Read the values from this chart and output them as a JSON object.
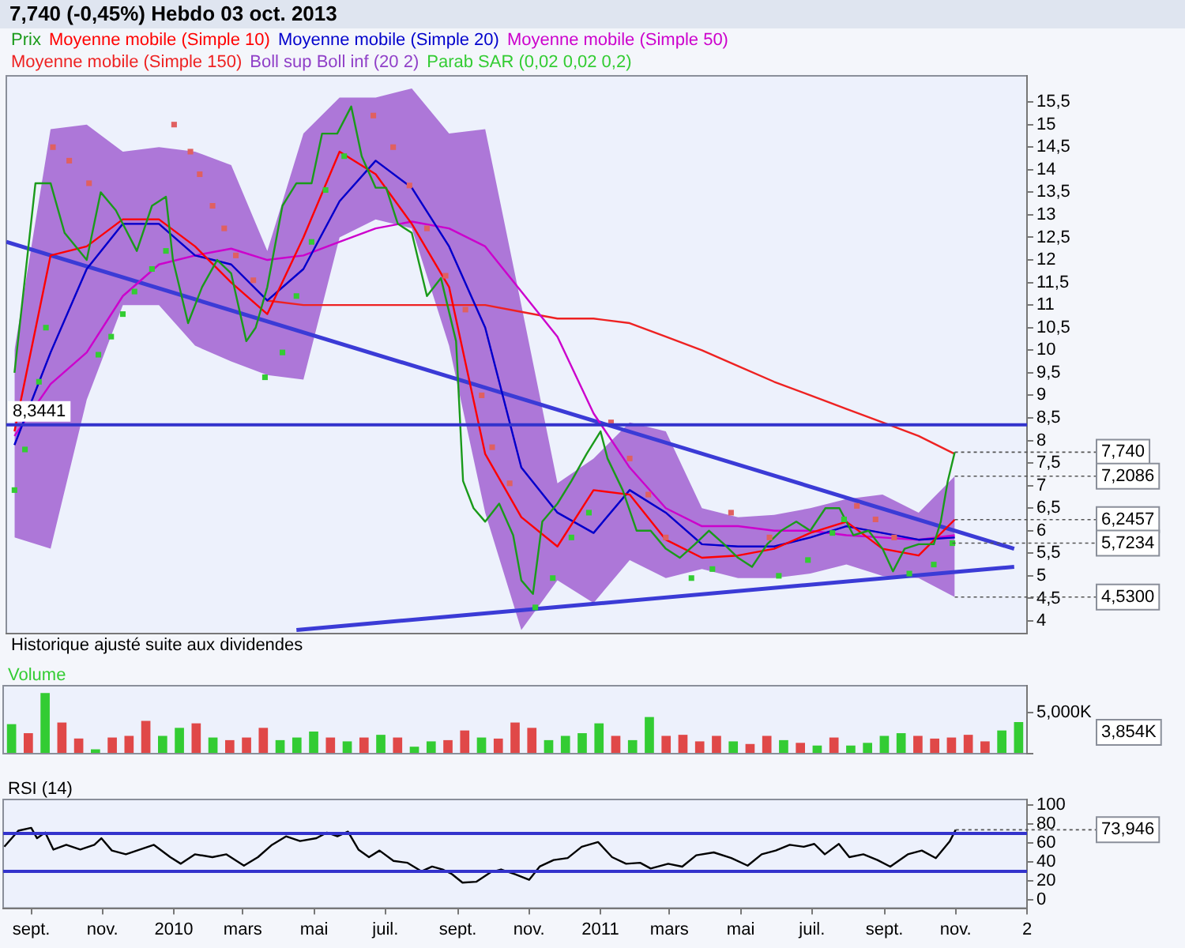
{
  "chart_data": [
    {
      "type": "line",
      "title": "7,740 (-0,45%)   Hebdo  03 oct. 2013",
      "legend": "top left",
      "tick_labels": "y",
      "xlim": [
        "2009-08-08",
        "2012-01-01"
      ],
      "ylim": [
        3.72,
        16.08
      ],
      "yticks": [
        4,
        {
          "value": 4.5,
          "label": "4,5"
        },
        5,
        {
          "value": 5.5,
          "label": "5,5"
        },
        6,
        {
          "value": 6.5,
          "label": "6,5"
        },
        7,
        {
          "value": 7.5,
          "label": "7,5"
        },
        8,
        {
          "value": 8.5,
          "label": "8,5"
        },
        9,
        {
          "value": 9.5,
          "label": "9,5"
        },
        10,
        {
          "value": 10.5,
          "label": "10,5"
        },
        11,
        {
          "value": 11.5,
          "label": "11,5"
        },
        12,
        {
          "value": 12.5,
          "label": "12,5"
        },
        13,
        {
          "value": 13.5,
          "label": "13,5"
        },
        14,
        {
          "value": 14.5,
          "label": "14,5"
        },
        15,
        {
          "value": 15.5,
          "label": "15,5"
        }
      ],
      "x": [
        "2009-08-15",
        "2009-09-15",
        "2009-10-16",
        "2009-11-16",
        "2009-12-17",
        "2010-01-17",
        "2010-02-17",
        "2010-03-20",
        "2010-04-20",
        "2010-05-21",
        "2010-06-21",
        "2010-07-22",
        "2010-08-23",
        "2010-09-23",
        "2010-10-24",
        "2010-11-24",
        "2010-12-25",
        "2011-01-25",
        "2011-02-25",
        "2011-03-28",
        "2011-04-28",
        "2011-05-29",
        "2011-06-29",
        "2011-07-30",
        "2011-08-30",
        "2011-09-30",
        "2011-10-31"
      ],
      "ref_lines": [
        {
          "axis": "y",
          "value": 8.3441,
          "label": "8,3441",
          "color": "#3333cc"
        }
      ],
      "annotations": [
        "Historique ajusté suite aux dividendes",
        {
          "text": "7,740",
          "x": "2011-10-31",
          "y": 7.74
        },
        {
          "text": "7,2086",
          "x": "2011-10-31",
          "y": 7.2086
        },
        {
          "text": "6,2457",
          "x": "2011-10-31",
          "y": 6.2457
        },
        {
          "text": "5,7234",
          "x": "2011-10-29",
          "y": 5.7234
        },
        {
          "text": "4,5300",
          "x": "2011-10-31",
          "y": 4.53
        }
      ],
      "series": [
        {
          "name": "Prix",
          "type": "line",
          "color": "#1a9a1a",
          "x": [
            "2009-08-15",
            "2009-09-02",
            "2009-09-15",
            "2009-09-27",
            "2009-10-16",
            "2009-10-28",
            "2009-11-10",
            "2009-11-28",
            "2009-12-11",
            "2009-12-23",
            "2009-12-29",
            "2010-01-11",
            "2010-01-23",
            "2010-02-05",
            "2010-02-17",
            "2010-03-02",
            "2010-03-10",
            "2010-03-20",
            "2010-04-02",
            "2010-04-14",
            "2010-04-27",
            "2010-05-06",
            "2010-05-19",
            "2010-05-31",
            "2010-06-09",
            "2010-06-21",
            "2010-06-30",
            "2010-07-10",
            "2010-07-22",
            "2010-08-04",
            "2010-08-16",
            "2010-08-29",
            "2010-09-04",
            "2010-09-13",
            "2010-09-23",
            "2010-10-05",
            "2010-10-17",
            "2010-10-24",
            "2010-11-03",
            "2010-11-11",
            "2010-11-24",
            "2010-12-06",
            "2010-12-19",
            "2010-12-31",
            "2011-01-06",
            "2011-01-19",
            "2011-01-31",
            "2011-02-12",
            "2011-02-25",
            "2011-03-09",
            "2011-03-22",
            "2011-04-03",
            "2011-04-16",
            "2011-04-28",
            "2011-05-10",
            "2011-05-23",
            "2011-06-04",
            "2011-06-17",
            "2011-06-29",
            "2011-07-12",
            "2011-07-24",
            "2011-08-05",
            "2011-08-18",
            "2011-08-30",
            "2011-09-08",
            "2011-09-18",
            "2011-09-30",
            "2011-10-13",
            "2011-10-19",
            "2011-10-25",
            "2011-10-31"
          ],
          "values": [
            9.5,
            13.7,
            13.7,
            12.6,
            12.0,
            13.5,
            13.1,
            12.2,
            13.2,
            13.4,
            12.0,
            10.6,
            11.4,
            12.0,
            11.7,
            10.2,
            10.5,
            11.4,
            13.2,
            13.7,
            13.7,
            14.8,
            14.8,
            15.4,
            14.3,
            13.6,
            13.6,
            12.8,
            12.6,
            11.2,
            11.6,
            10.2,
            7.1,
            6.5,
            6.2,
            6.6,
            5.9,
            4.9,
            4.6,
            6.2,
            6.6,
            7.1,
            7.7,
            8.2,
            7.6,
            6.9,
            6.0,
            6.0,
            5.6,
            5.4,
            5.7,
            6.0,
            5.7,
            5.4,
            5.2,
            5.7,
            6.0,
            6.2,
            6.0,
            6.5,
            6.5,
            5.9,
            6.0,
            5.6,
            5.1,
            5.6,
            5.7,
            5.7,
            6.2,
            7.1,
            7.74
          ]
        },
        {
          "name": "Moyenne mobile (Simple 10)",
          "type": "line",
          "color": "#ff0000",
          "values": [
            8.2,
            12.1,
            12.3,
            12.9,
            12.9,
            12.3,
            11.5,
            10.8,
            12.5,
            14.4,
            13.9,
            12.8,
            11.4,
            7.7,
            6.3,
            5.65,
            6.9,
            6.8,
            5.8,
            5.4,
            5.45,
            5.6,
            5.95,
            6.2,
            5.6,
            5.45,
            6.2457
          ]
        },
        {
          "name": "Moyenne mobile (Simple 20)",
          "type": "line",
          "color": "#0000cc",
          "values": [
            7.9,
            9.95,
            11.8,
            12.8,
            12.8,
            12.1,
            11.9,
            11.1,
            11.8,
            13.3,
            14.2,
            13.6,
            12.3,
            10.5,
            7.4,
            6.4,
            5.95,
            6.9,
            6.4,
            5.7,
            5.65,
            5.65,
            5.85,
            6.1,
            5.95,
            5.8,
            5.85
          ]
        },
        {
          "name": "Moyenne mobile (Simple 50)",
          "type": "line",
          "color": "#cc00cc",
          "values": [
            8.1,
            9.25,
            9.95,
            11.2,
            11.9,
            12.1,
            12.25,
            12.0,
            12.1,
            12.4,
            12.7,
            12.85,
            12.7,
            12.3,
            11.3,
            10.3,
            8.6,
            7.4,
            6.5,
            6.1,
            6.1,
            6.0,
            6.0,
            5.9,
            5.85,
            5.8,
            5.9
          ]
        },
        {
          "name": "Moyenne mobile (Simple 150)",
          "type": "line",
          "color": "#ee2222",
          "values": [
            null,
            null,
            null,
            null,
            null,
            null,
            null,
            11.1,
            11.0,
            11.0,
            11.0,
            11.0,
            11.0,
            11.0,
            10.85,
            10.7,
            10.7,
            10.6,
            10.3,
            10.0,
            9.65,
            9.3,
            9.0,
            8.7,
            8.4,
            8.1,
            7.7
          ]
        },
        {
          "name": "Boll sup Boll inf (20 2)",
          "type": "line",
          "color": "#9040c8",
          "values": [
            7.9,
            9.95,
            11.8,
            12.8,
            12.8,
            12.1,
            11.9,
            11.1,
            11.8,
            13.3,
            14.2,
            13.6,
            12.3,
            10.5,
            7.4,
            6.4,
            5.95,
            6.9,
            6.4,
            5.7,
            5.65,
            5.65,
            5.85,
            6.1,
            5.95,
            5.8,
            5.85
          ],
          "upper": [
            10.0,
            14.9,
            15.0,
            14.4,
            14.5,
            14.4,
            14.1,
            12.2,
            14.8,
            15.6,
            15.6,
            15.8,
            14.8,
            14.9,
            11.0,
            7.05,
            7.6,
            8.4,
            8.2,
            6.5,
            6.3,
            6.35,
            6.5,
            6.7,
            6.8,
            6.4,
            7.2086
          ],
          "lower": [
            5.85,
            5.6,
            8.9,
            11.0,
            11.0,
            10.1,
            9.75,
            9.45,
            9.35,
            12.5,
            12.9,
            12.7,
            10.1,
            6.4,
            3.8,
            4.9,
            4.4,
            5.35,
            4.95,
            5.15,
            4.95,
            4.95,
            5.05,
            5.25,
            5.0,
            4.95,
            4.53
          ]
        },
        {
          "name": "Parab SAR (0,02 0,02 0,2)",
          "type": "scatter",
          "marker": "square",
          "color": "#33cc33",
          "x": [
            "2009-08-15",
            "2009-08-24",
            "2009-09-05",
            "2009-09-11",
            "2009-09-17",
            "2009-10-01",
            "2009-10-18",
            "2009-10-26",
            "2009-11-06",
            "2009-11-16",
            "2009-11-26",
            "2009-12-11",
            "2009-12-23",
            "2009-12-30",
            "2010-01-13",
            "2010-01-21",
            "2010-02-01",
            "2010-02-11",
            "2010-02-21",
            "2010-03-08",
            "2010-03-18",
            "2010-04-02",
            "2010-04-14",
            "2010-04-27",
            "2010-05-09",
            "2010-05-25",
            "2010-06-19",
            "2010-07-06",
            "2010-07-20",
            "2010-08-04",
            "2010-08-20",
            "2010-09-06",
            "2010-09-20",
            "2010-09-29",
            "2010-10-14",
            "2010-11-05",
            "2010-11-20",
            "2010-12-06",
            "2010-12-21",
            "2011-01-09",
            "2011-01-25",
            "2011-02-10",
            "2011-02-25",
            "2011-03-19",
            "2011-04-06",
            "2011-04-22",
            "2011-05-25",
            "2011-06-02",
            "2011-06-27",
            "2011-07-18",
            "2011-07-28",
            "2011-08-08",
            "2011-08-24",
            "2011-09-09",
            "2011-09-22",
            "2011-10-13",
            "2011-10-29"
          ],
          "values": [
            6.9,
            7.8,
            9.3,
            10.5,
            14.5,
            14.2,
            13.7,
            9.9,
            10.3,
            10.8,
            11.3,
            11.8,
            12.2,
            15.0,
            14.4,
            13.9,
            13.2,
            12.7,
            12.1,
            11.55,
            9.4,
            9.95,
            11.2,
            12.4,
            13.55,
            14.3,
            15.2,
            14.5,
            13.65,
            12.7,
            11.65,
            10.9,
            9.0,
            7.85,
            7.05,
            4.3,
            4.95,
            5.85,
            6.4,
            8.4,
            7.6,
            6.8,
            5.85,
            4.95,
            5.15,
            6.4,
            5.85,
            5.0,
            5.35,
            5.95,
            6.25,
            6.55,
            6.25,
            5.85,
            5.05,
            5.25,
            5.7234
          ],
          "colors": [
            "#33cc33",
            "#33cc33",
            "#33cc33",
            "#33cc33",
            "#e06060",
            "#e06060",
            "#e06060",
            "#33cc33",
            "#33cc33",
            "#33cc33",
            "#33cc33",
            "#33cc33",
            "#33cc33",
            "#e06060",
            "#e06060",
            "#e06060",
            "#e06060",
            "#e06060",
            "#e06060",
            "#e06060",
            "#33cc33",
            "#33cc33",
            "#33cc33",
            "#33cc33",
            "#33cc33",
            "#33cc33",
            "#e06060",
            "#e06060",
            "#e06060",
            "#e06060",
            "#e06060",
            "#e06060",
            "#e06060",
            "#e06060",
            "#e06060",
            "#33cc33",
            "#33cc33",
            "#33cc33",
            "#33cc33",
            "#e06060",
            "#e06060",
            "#e06060",
            "#e06060",
            "#33cc33",
            "#33cc33",
            "#e06060",
            "#e06060",
            "#33cc33",
            "#33cc33",
            "#33cc33",
            "#33cc33",
            "#e06060",
            "#e06060",
            "#e06060",
            "#33cc33",
            "#33cc33",
            "#33cc33"
          ]
        },
        {
          "type": "line",
          "color": "#3b3bd6",
          "x": [
            "2009-08-08",
            "2011-12-21"
          ],
          "values": [
            12.4,
            5.6
          ]
        },
        {
          "type": "line",
          "color": "#3b3bd6",
          "x": [
            "2010-04-14",
            "2011-12-21"
          ],
          "values": [
            3.8,
            5.2
          ]
        }
      ]
    },
    {
      "type": "bar",
      "legend": "top left",
      "tick_labels": "y",
      "ylim": [
        0,
        8290
      ],
      "yticks": [
        {
          "value": 0,
          "label": null
        },
        {
          "value": 5000,
          "label": "5,000K"
        }
      ],
      "categories": [
        null,
        null,
        null,
        null,
        null,
        null,
        null,
        null,
        null,
        null,
        null,
        null,
        null,
        null,
        null,
        null,
        null,
        null,
        null,
        null,
        null,
        null,
        null,
        null,
        null,
        null,
        null,
        null,
        null,
        null,
        null,
        null,
        null,
        null,
        null,
        null,
        null,
        null,
        null,
        null,
        null,
        null,
        null,
        null,
        null,
        null,
        null,
        null,
        null,
        null,
        null,
        null,
        null,
        null,
        null,
        null,
        null,
        null,
        null,
        null,
        null
      ],
      "annotations": [
        "3,854K"
      ],
      "series": [
        {
          "name": "Volume",
          "color": "#33cc33",
          "values": [
            3600,
            2500,
            7400,
            3800,
            1850,
            530,
            1970,
            2170,
            4000,
            2170,
            3150,
            3700,
            1970,
            1650,
            1970,
            3150,
            1650,
            1970,
            2700,
            1970,
            1500,
            1970,
            2300,
            1970,
            850,
            1500,
            1650,
            2830,
            1970,
            1840,
            3800,
            3150,
            1650,
            2170,
            2500,
            3700,
            2170,
            1650,
            4470,
            2170,
            2300,
            1500,
            2170,
            1500,
            1180,
            2170,
            1650,
            1320,
            990,
            1970,
            990,
            1320,
            2170,
            2500,
            2170,
            1840,
            1970,
            2300,
            1500,
            2830,
            3854
          ],
          "colors": [
            "#33cc33",
            "#e04848",
            "#33cc33",
            "#e04848",
            "#e04848",
            "#33cc33",
            "#e04848",
            "#e04848",
            "#e04848",
            "#33cc33",
            "#33cc33",
            "#e04848",
            "#33cc33",
            "#e04848",
            "#e04848",
            "#e04848",
            "#33cc33",
            "#33cc33",
            "#33cc33",
            "#e04848",
            "#33cc33",
            "#e04848",
            "#33cc33",
            "#e04848",
            "#33cc33",
            "#33cc33",
            "#e04848",
            "#e04848",
            "#33cc33",
            "#e04848",
            "#e04848",
            "#e04848",
            "#33cc33",
            "#33cc33",
            "#33cc33",
            "#33cc33",
            "#e04848",
            "#33cc33",
            "#33cc33",
            "#e04848",
            "#e04848",
            "#e04848",
            "#e04848",
            "#33cc33",
            "#e04848",
            "#e04848",
            "#33cc33",
            "#e04848",
            "#33cc33",
            "#e04848",
            "#33cc33",
            "#33cc33",
            "#33cc33",
            "#33cc33",
            "#e04848",
            "#e04848",
            "#e04848",
            "#e04848",
            "#e04848",
            "#33cc33",
            "#33cc33"
          ]
        }
      ]
    },
    {
      "type": "line",
      "legend": "top left",
      "xlim": [
        "2009-08-08",
        "2012-01-01"
      ],
      "ylim": [
        -9,
        106
      ],
      "yticks": [
        0,
        20,
        40,
        60,
        80,
        100
      ],
      "xticks": [
        {
          "value": "2009-09-01",
          "label": "sept."
        },
        {
          "value": "2009-11-01",
          "label": "nov."
        },
        {
          "value": "2010-01-01",
          "label": "2010"
        },
        {
          "value": "2010-03-01",
          "label": "mars"
        },
        {
          "value": "2010-05-01",
          "label": "mai"
        },
        {
          "value": "2010-07-01",
          "label": "juil."
        },
        {
          "value": "2010-09-01",
          "label": "sept."
        },
        {
          "value": "2010-11-01",
          "label": "nov."
        },
        {
          "value": "2011-01-01",
          "label": "2011"
        },
        {
          "value": "2011-03-01",
          "label": "mars"
        },
        {
          "value": "2011-05-01",
          "label": "mai"
        },
        {
          "value": "2011-07-01",
          "label": "juil."
        },
        {
          "value": "2011-09-01",
          "label": "sept."
        },
        {
          "value": "2011-11-01",
          "label": "nov."
        },
        {
          "value": "2012-01-01",
          "label": "2"
        }
      ],
      "ref_lines": [
        {
          "axis": "y",
          "value": 70,
          "color": "#3333cc"
        },
        {
          "axis": "y",
          "value": 30,
          "color": "#3333cc"
        }
      ],
      "annotations": [
        {
          "text": "73,946",
          "x": "2011-11-01",
          "y": 73.946
        }
      ],
      "series": [
        {
          "name": "RSI (14)",
          "color": "#000000",
          "x": [
            "2009-08-09",
            "2009-08-21",
            "2009-09-01",
            "2009-09-06",
            "2009-09-13",
            "2009-09-20",
            "2009-10-01",
            "2009-10-13",
            "2009-10-25",
            "2009-10-31",
            "2009-11-09",
            "2009-11-21",
            "2009-12-03",
            "2009-12-15",
            "2009-12-29",
            "2010-01-07",
            "2010-01-19",
            "2010-02-03",
            "2010-02-15",
            "2010-03-02",
            "2010-03-14",
            "2010-03-26",
            "2010-04-07",
            "2010-04-19",
            "2010-05-03",
            "2010-05-12",
            "2010-05-21",
            "2010-05-30",
            "2010-06-08",
            "2010-06-17",
            "2010-06-26",
            "2010-07-08",
            "2010-07-20",
            "2010-08-01",
            "2010-08-10",
            "2010-08-19",
            "2010-08-27",
            "2010-09-05",
            "2010-09-17",
            "2010-09-29",
            "2010-10-08",
            "2010-10-20",
            "2010-11-01",
            "2010-11-10",
            "2010-11-22",
            "2010-12-04",
            "2010-12-16",
            "2010-12-30",
            "2011-01-11",
            "2011-01-23",
            "2011-02-04",
            "2011-02-13",
            "2011-02-28",
            "2011-03-12",
            "2011-03-24",
            "2011-04-08",
            "2011-04-23",
            "2011-05-07",
            "2011-05-19",
            "2011-05-31",
            "2011-06-12",
            "2011-06-24",
            "2011-07-03",
            "2011-07-12",
            "2011-07-24",
            "2011-08-02",
            "2011-08-14",
            "2011-08-26",
            "2011-09-06",
            "2011-09-21",
            "2011-10-03",
            "2011-10-15",
            "2011-10-27",
            "2011-11-01"
          ],
          "values": [
            56,
            73,
            76,
            65,
            71,
            53,
            58,
            53,
            58,
            65,
            52,
            48,
            53,
            58,
            45,
            38,
            48,
            45,
            48,
            36,
            45,
            58,
            67,
            62,
            65,
            71,
            67,
            72,
            53,
            45,
            52,
            41,
            39,
            30,
            35,
            32,
            27,
            18,
            19,
            29,
            32,
            27,
            21,
            35,
            42,
            44,
            56,
            61,
            45,
            38,
            39,
            33,
            38,
            35,
            47,
            50,
            44,
            36,
            48,
            52,
            58,
            56,
            59,
            48,
            59,
            45,
            48,
            42,
            35,
            48,
            52,
            44,
            62,
            73.946
          ]
        }
      ]
    }
  ]
}
